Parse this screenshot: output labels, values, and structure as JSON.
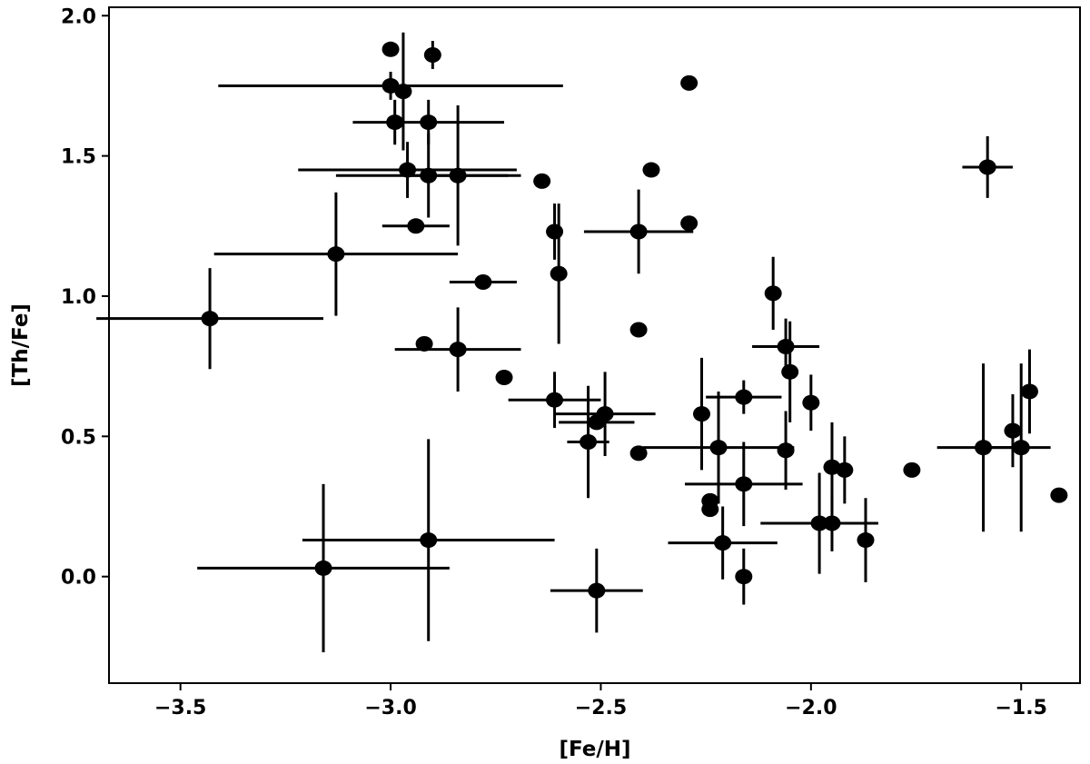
{
  "chart_data": {
    "type": "scatter",
    "xlabel": "[Fe/H]",
    "ylabel": "[Th/Fe]",
    "xlim": [
      -3.67,
      -1.36
    ],
    "ylim": [
      -0.38,
      2.03
    ],
    "xticks": [
      -3.5,
      -3.0,
      -2.5,
      -2.0,
      -1.5
    ],
    "xtick_labels": [
      "−3.5",
      "−3.0",
      "−2.5",
      "−2.0",
      "−1.5"
    ],
    "yticks": [
      0.0,
      0.5,
      1.0,
      1.5,
      2.0
    ],
    "ytick_labels": [
      "0.0",
      "0.5",
      "1.0",
      "1.5",
      "2.0"
    ],
    "grid": false,
    "marker_color": "#000000",
    "points": [
      {
        "x": -3.43,
        "y": 0.92,
        "xerr": 0.27,
        "yerr": 0.18
      },
      {
        "x": -3.13,
        "y": 1.15,
        "xerr": 0.29,
        "yerr": 0.22
      },
      {
        "x": -3.16,
        "y": 0.03,
        "xerr": 0.3,
        "yerr": 0.3
      },
      {
        "x": -2.91,
        "y": 0.13,
        "xerr": 0.3,
        "yerr": 0.36
      },
      {
        "x": -3.0,
        "y": 1.88
      },
      {
        "x": -2.9,
        "y": 1.86,
        "yerr": 0.05
      },
      {
        "x": -3.0,
        "y": 1.75,
        "xerr": 0.41,
        "yerr": 0.05
      },
      {
        "x": -2.97,
        "y": 1.73,
        "yerr": 0.21
      },
      {
        "x": -2.99,
        "y": 1.62,
        "yerr": 0.08
      },
      {
        "x": -2.91,
        "y": 1.62,
        "xerr": 0.18,
        "yerr": 0.08
      },
      {
        "x": -2.96,
        "y": 1.45,
        "xerr": 0.26,
        "yerr": 0.1
      },
      {
        "x": -2.91,
        "y": 1.43,
        "xerr": 0.22,
        "yerr": 0.15
      },
      {
        "x": -2.84,
        "y": 1.43,
        "xerr": 0.12,
        "yerr": 0.25
      },
      {
        "x": -2.94,
        "y": 1.25,
        "xerr": 0.08
      },
      {
        "x": -2.78,
        "y": 1.05,
        "xerr": 0.08
      },
      {
        "x": -2.92,
        "y": 0.83
      },
      {
        "x": -2.84,
        "y": 0.81,
        "xerr": 0.15,
        "yerr": 0.15
      },
      {
        "x": -2.73,
        "y": 0.71
      },
      {
        "x": -2.64,
        "y": 1.41
      },
      {
        "x": -2.61,
        "y": 1.23,
        "yerr": 0.1
      },
      {
        "x": -2.6,
        "y": 1.08,
        "yerr": 0.25
      },
      {
        "x": -2.38,
        "y": 1.45
      },
      {
        "x": -2.29,
        "y": 1.76
      },
      {
        "x": -2.29,
        "y": 1.26
      },
      {
        "x": -2.41,
        "y": 1.23,
        "xerr": 0.13,
        "yerr": 0.15
      },
      {
        "x": -2.41,
        "y": 0.88
      },
      {
        "x": -2.61,
        "y": 0.63,
        "xerr": 0.11,
        "yerr": 0.1
      },
      {
        "x": -2.53,
        "y": 0.48,
        "xerr": 0.05,
        "yerr": 0.2
      },
      {
        "x": -2.51,
        "y": 0.55,
        "xerr": 0.09
      },
      {
        "x": -2.49,
        "y": 0.58,
        "xerr": 0.12,
        "yerr": 0.15
      },
      {
        "x": -2.41,
        "y": 0.44
      },
      {
        "x": -2.51,
        "y": -0.05,
        "xerr": 0.11,
        "yerr": 0.15
      },
      {
        "x": -2.09,
        "y": 1.01,
        "yerr": 0.13
      },
      {
        "x": -2.06,
        "y": 0.82,
        "xerr": 0.08,
        "yerr": 0.1
      },
      {
        "x": -2.05,
        "y": 0.73,
        "yerr": 0.18
      },
      {
        "x": -2.0,
        "y": 0.62,
        "yerr": 0.1
      },
      {
        "x": -2.16,
        "y": 0.64,
        "xerr": 0.09,
        "yerr": 0.06
      },
      {
        "x": -2.26,
        "y": 0.58,
        "yerr": 0.2
      },
      {
        "x": -2.22,
        "y": 0.46,
        "xerr": 0.18,
        "yerr": 0.2
      },
      {
        "x": -2.06,
        "y": 0.45,
        "yerr": 0.14
      },
      {
        "x": -2.24,
        "y": 0.27
      },
      {
        "x": -2.24,
        "y": 0.24
      },
      {
        "x": -2.16,
        "y": 0.33,
        "xerr": 0.14,
        "yerr": 0.15
      },
      {
        "x": -2.21,
        "y": 0.12,
        "xerr": 0.13,
        "yerr": 0.13
      },
      {
        "x": -2.16,
        "y": 0.0,
        "yerr": 0.1
      },
      {
        "x": -1.95,
        "y": 0.39,
        "yerr": 0.16
      },
      {
        "x": -1.92,
        "y": 0.38,
        "yerr": 0.12
      },
      {
        "x": -1.98,
        "y": 0.19,
        "xerr": 0.14,
        "yerr": 0.18
      },
      {
        "x": -1.95,
        "y": 0.19,
        "yerr": 0.1
      },
      {
        "x": -1.87,
        "y": 0.13,
        "yerr": 0.15
      },
      {
        "x": -1.76,
        "y": 0.38
      },
      {
        "x": -1.58,
        "y": 1.46,
        "xerr": 0.06,
        "yerr": 0.11
      },
      {
        "x": -1.59,
        "y": 0.46,
        "xerr": 0.11,
        "yerr": 0.3
      },
      {
        "x": -1.5,
        "y": 0.46,
        "xerr": 0.07,
        "yerr": 0.3
      },
      {
        "x": -1.52,
        "y": 0.52,
        "yerr": 0.13
      },
      {
        "x": -1.48,
        "y": 0.66,
        "yerr": 0.15
      },
      {
        "x": -1.41,
        "y": 0.29
      }
    ]
  }
}
